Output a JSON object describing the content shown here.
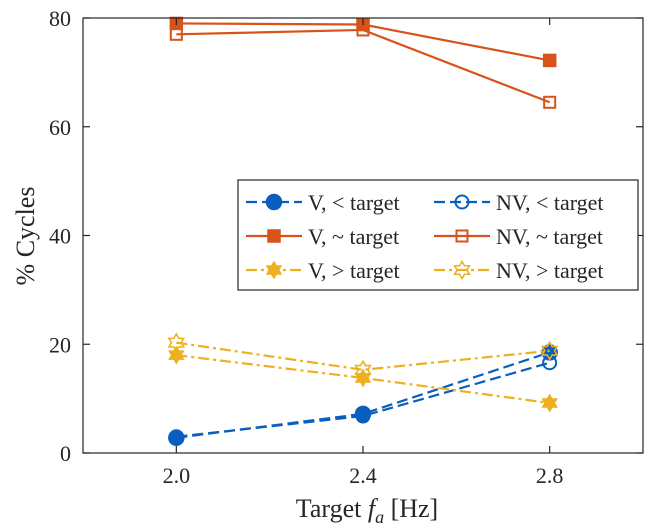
{
  "chart_data": {
    "type": "line",
    "x": [
      2.0,
      2.4,
      2.8
    ],
    "xlim": [
      1.8,
      3.0
    ],
    "ylim": [
      0,
      80
    ],
    "xticks": [
      "2.0",
      "2.4",
      "2.8"
    ],
    "yticks": [
      "0",
      "20",
      "40",
      "60",
      "80"
    ],
    "xlabel_main": "Target ",
    "xlabel_sym": "f",
    "xlabel_sub": "a",
    "xlabel_unit": " [Hz]",
    "ylabel": "% Cycles",
    "grid": false,
    "legend_position": "middle-right",
    "series": [
      {
        "name": "V, < target",
        "values": [
          2.8,
          7.2,
          18.5
        ],
        "color": "#0a5fbe",
        "marker": "filled-circle",
        "line": "dashed"
      },
      {
        "name": "NV, < target",
        "values": [
          3.0,
          6.8,
          16.6
        ],
        "color": "#0a5fbe",
        "marker": "open-circle",
        "line": "dashed"
      },
      {
        "name": "V, ~ target",
        "values": [
          79.0,
          78.8,
          72.2
        ],
        "color": "#d95219",
        "marker": "filled-square",
        "line": "solid"
      },
      {
        "name": "NV, ~ target",
        "values": [
          77.0,
          77.8,
          64.5
        ],
        "color": "#d95219",
        "marker": "open-square",
        "line": "solid"
      },
      {
        "name": "V, > target",
        "values": [
          18.0,
          13.8,
          9.2
        ],
        "color": "#edb120",
        "marker": "filled-hexagram",
        "line": "dashdot"
      },
      {
        "name": "NV, > target",
        "values": [
          20.3,
          15.3,
          18.8
        ],
        "color": "#edb120",
        "marker": "open-hexagram",
        "line": "dashdot"
      }
    ],
    "legend_order": [
      0,
      1,
      2,
      3,
      4,
      5
    ]
  }
}
